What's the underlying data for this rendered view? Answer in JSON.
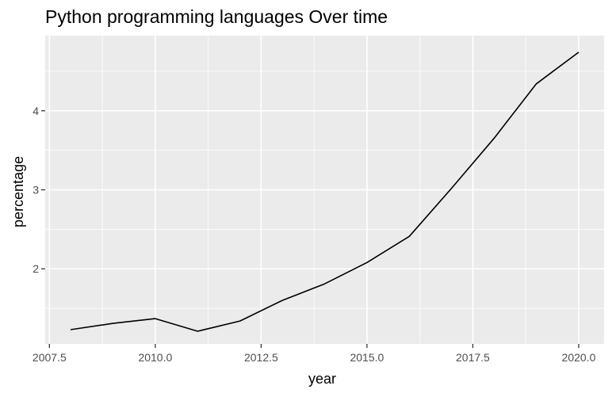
{
  "chart_data": {
    "type": "line",
    "title": "Python programming languages Over time",
    "xlabel": "year",
    "ylabel": "percentage",
    "x": [
      2008,
      2009,
      2010,
      2011,
      2012,
      2013,
      2014,
      2015,
      2016,
      2017,
      2018,
      2019,
      2020
    ],
    "series": [
      {
        "name": "percentage",
        "values": [
          1.23,
          1.31,
          1.37,
          1.21,
          1.34,
          1.6,
          1.81,
          2.08,
          2.41,
          3.02,
          3.65,
          4.34,
          4.74
        ],
        "color": "#000000"
      }
    ],
    "x_ticks": [
      "2007.5",
      "2010.0",
      "2012.5",
      "2015.0",
      "2017.5",
      "2020.0"
    ],
    "y_ticks": [
      "2",
      "3",
      "4"
    ],
    "xlim": [
      2007.4,
      2020.6
    ],
    "ylim": [
      1.05,
      4.95
    ],
    "grid": true,
    "theme": {
      "panel_background": "#EBEBEB",
      "grid_color": "#FFFFFF",
      "tick_label_color": "#4D4D4D",
      "tick_color": "#333333"
    },
    "legend": "none"
  }
}
